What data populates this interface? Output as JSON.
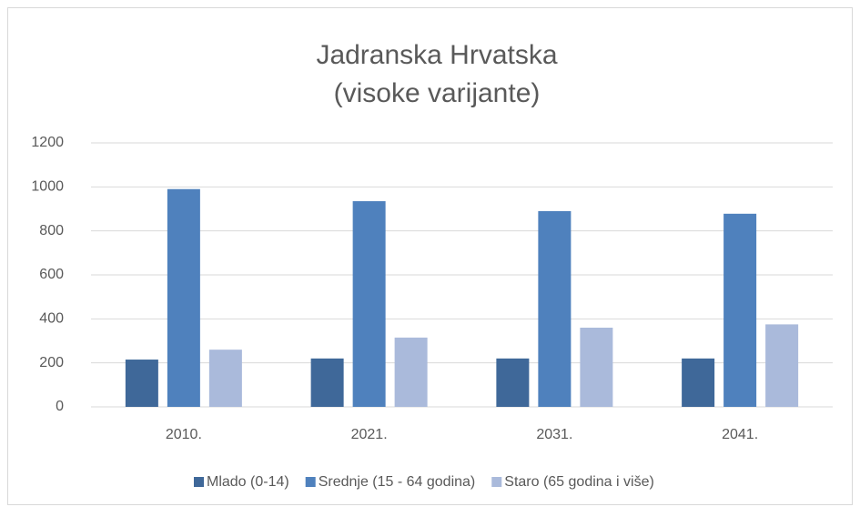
{
  "chart_data": {
    "type": "bar",
    "title": [
      "Jadranska Hrvatska",
      "(visoke varijante)"
    ],
    "categories": [
      "2010.",
      "2021.",
      "2031.",
      "2041."
    ],
    "series": [
      {
        "name": "Mlado (0-14)",
        "color": "#3f6899",
        "values": [
          215,
          220,
          220,
          220
        ]
      },
      {
        "name": "Srednje (15 - 64 godina)",
        "color": "#4f81bd",
        "values": [
          990,
          935,
          890,
          878
        ]
      },
      {
        "name": "Staro (65 godina i više)",
        "color": "#aabadb",
        "values": [
          260,
          315,
          360,
          375
        ]
      }
    ],
    "ylim": [
      0,
      1200
    ],
    "yticks": [
      0,
      200,
      400,
      600,
      800,
      1000,
      1200
    ],
    "grid": true,
    "legend": "bottom"
  }
}
